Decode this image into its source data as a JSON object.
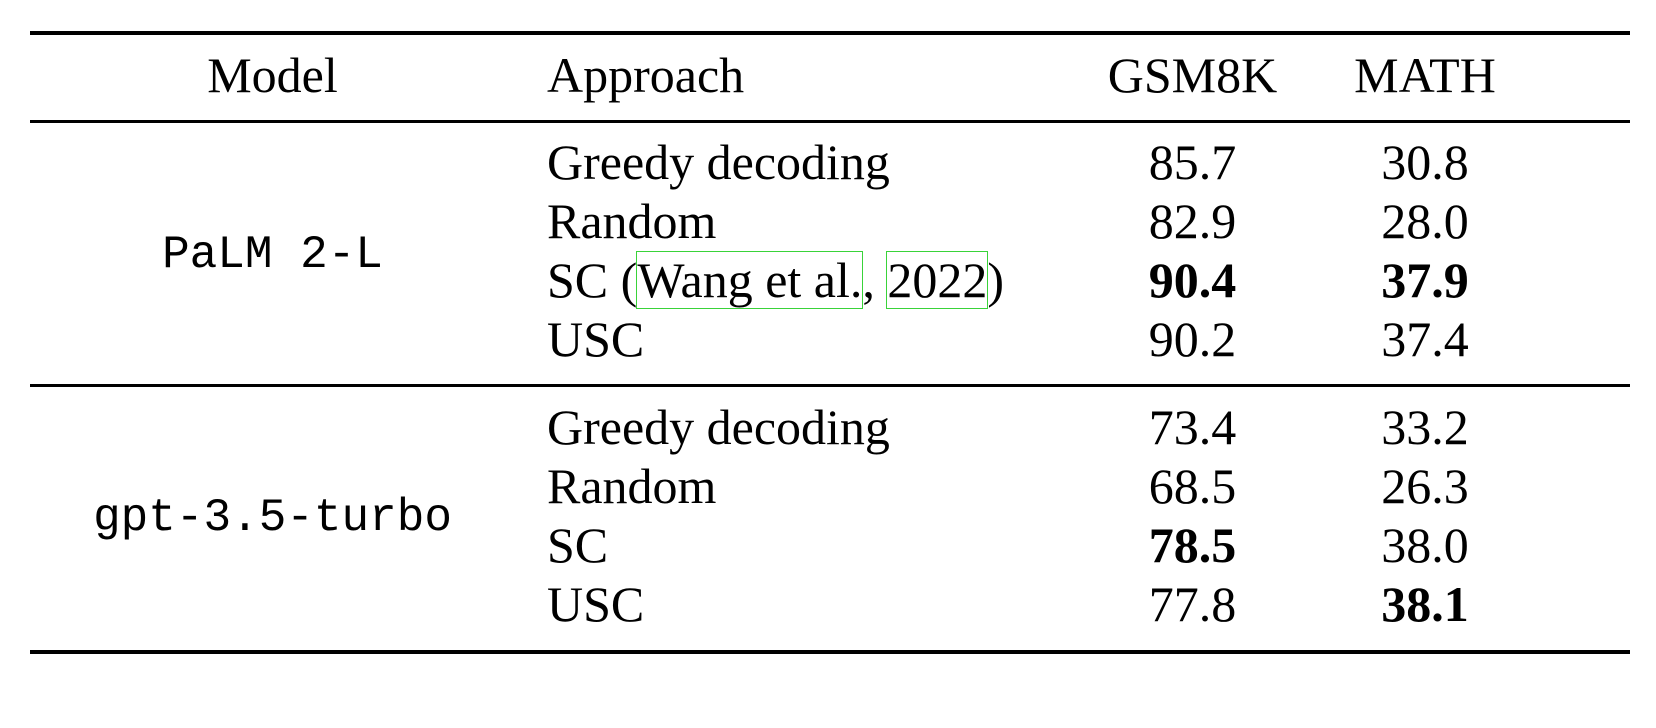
{
  "headers": {
    "model": "Model",
    "approach": "Approach",
    "gsm8k": "GSM8K",
    "math": "MATH"
  },
  "groups": [
    {
      "model": "PaLM 2-L",
      "rows": [
        {
          "approach": "Greedy decoding",
          "gsm8k": "85.7",
          "math": "30.8"
        },
        {
          "approach": "Random",
          "gsm8k": "82.9",
          "math": "28.0"
        },
        {
          "approach": "SC",
          "citation_open": "(",
          "citation_authors": "Wang et al.",
          "citation_sep": ", ",
          "citation_year": "2022",
          "citation_close": ")",
          "gsm8k": "90.4",
          "math": "37.9"
        },
        {
          "approach": "USC",
          "gsm8k": "90.2",
          "math": "37.4"
        }
      ]
    },
    {
      "model": "gpt-3.5-turbo",
      "rows": [
        {
          "approach": "Greedy decoding",
          "gsm8k": "73.4",
          "math": "33.2"
        },
        {
          "approach": "Random",
          "gsm8k": "68.5",
          "math": "26.3"
        },
        {
          "approach": "SC",
          "gsm8k": "78.5",
          "math": "38.0"
        },
        {
          "approach": "USC",
          "gsm8k": "77.8",
          "math": "38.1"
        }
      ]
    }
  ]
}
